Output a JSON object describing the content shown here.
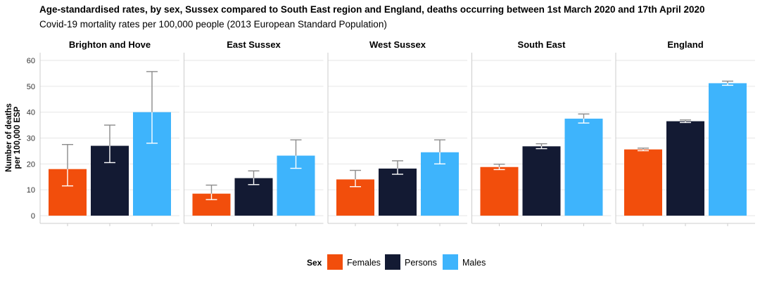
{
  "title": "Age-standardised rates, by sex, Sussex compared to South East region and England, deaths occurring between 1st March 2020 and 17th April 2020",
  "subtitle": "Covid-19 mortality rates per 100,000 people (2013 European Standard Population)",
  "chart_data": {
    "type": "bar",
    "ylabel": "Number of deaths\nper 100,000 ESP",
    "ylim": [
      -3,
      63
    ],
    "yticks": [
      0,
      10,
      20,
      30,
      40,
      50,
      60
    ],
    "grid": true,
    "legend": {
      "title": "Sex",
      "placement": "bottom"
    },
    "series_order": [
      "Females",
      "Persons",
      "Males"
    ],
    "colors": {
      "Females": "#F24E0C",
      "Persons": "#131A33",
      "Males": "#3EB4FC"
    },
    "panels": [
      {
        "name": "Brighton and Hove",
        "bars": [
          {
            "series": "Females",
            "value": 18,
            "lower": 11.5,
            "upper": 27.5
          },
          {
            "series": "Persons",
            "value": 27,
            "lower": 20.5,
            "upper": 35
          },
          {
            "series": "Males",
            "value": 40,
            "lower": 28,
            "upper": 55.7
          }
        ]
      },
      {
        "name": "East Sussex",
        "bars": [
          {
            "series": "Females",
            "value": 8.5,
            "lower": 6.2,
            "upper": 11.8
          },
          {
            "series": "Persons",
            "value": 14.5,
            "lower": 12,
            "upper": 17.3
          },
          {
            "series": "Males",
            "value": 23.2,
            "lower": 18.3,
            "upper": 29.3
          }
        ]
      },
      {
        "name": "West Sussex",
        "bars": [
          {
            "series": "Females",
            "value": 14,
            "lower": 11.2,
            "upper": 17.5
          },
          {
            "series": "Persons",
            "value": 18.2,
            "lower": 16,
            "upper": 21.2
          },
          {
            "series": "Males",
            "value": 24.5,
            "lower": 20,
            "upper": 29.3
          }
        ]
      },
      {
        "name": "South East",
        "bars": [
          {
            "series": "Females",
            "value": 18.8,
            "lower": 17.8,
            "upper": 19.9
          },
          {
            "series": "Persons",
            "value": 26.8,
            "lower": 25.9,
            "upper": 27.8
          },
          {
            "series": "Males",
            "value": 37.5,
            "lower": 35.8,
            "upper": 39.3
          }
        ]
      },
      {
        "name": "England",
        "bars": [
          {
            "series": "Females",
            "value": 25.6,
            "lower": 25.1,
            "upper": 26.1
          },
          {
            "series": "Persons",
            "value": 36.5,
            "lower": 36,
            "upper": 37
          },
          {
            "series": "Males",
            "value": 51.2,
            "lower": 50.4,
            "upper": 52
          }
        ]
      }
    ]
  }
}
